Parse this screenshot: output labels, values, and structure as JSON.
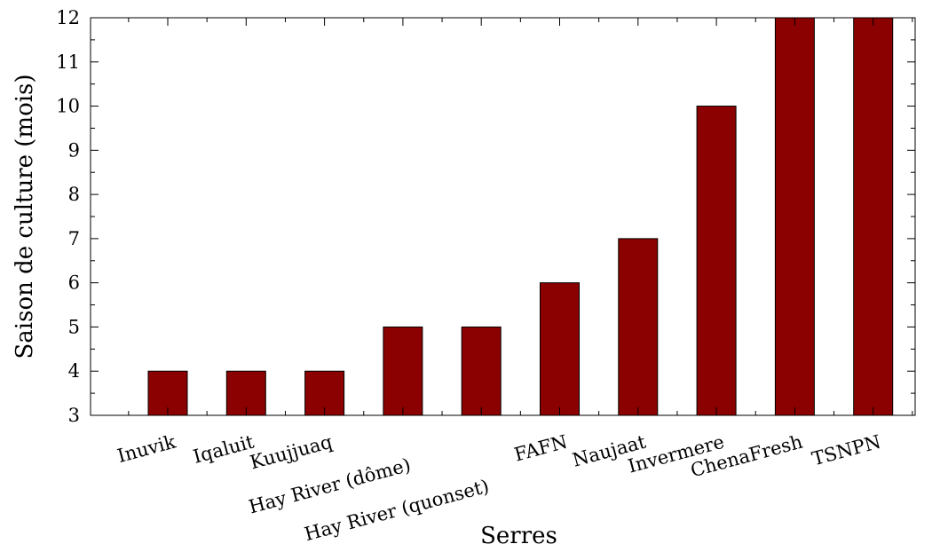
{
  "chart_data": {
    "type": "bar",
    "categories": [
      "Inuvik",
      "Iqaluit",
      "Kuujjuaq",
      "Hay River (dôme)",
      "Hay River (quonset)",
      "FAFN",
      "Naujaat",
      "Invermere",
      "ChenaFresh",
      "TSNPN"
    ],
    "values": [
      4,
      4,
      4,
      5,
      5,
      6,
      7,
      10,
      12,
      12
    ],
    "title": "",
    "xlabel": "Serres",
    "ylabel": "Saison de culture (mois)",
    "ylim": [
      3,
      12
    ],
    "yticks": [
      3,
      4,
      5,
      6,
      7,
      8,
      9,
      10,
      11,
      12
    ],
    "grid": false,
    "bar_color": "#8b0000"
  }
}
